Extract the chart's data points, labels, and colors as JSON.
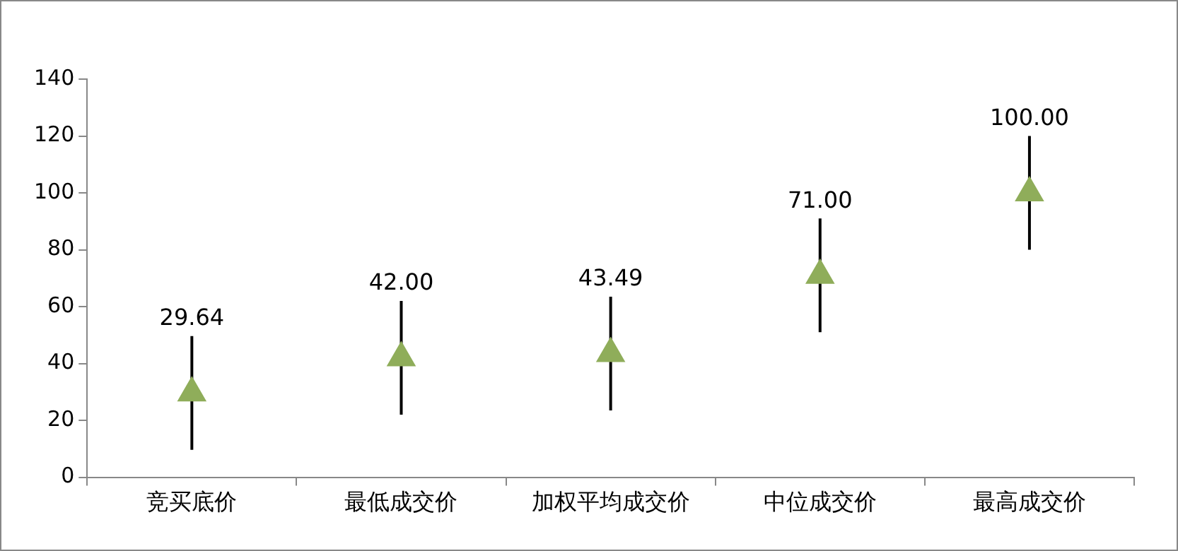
{
  "chart_data": {
    "type": "scatter",
    "categories": [
      "竞买底价",
      "最低成交价",
      "加权平均成交价",
      "中位成交价",
      "最高成交价"
    ],
    "values": [
      29.64,
      42.0,
      43.49,
      71.0,
      100.0
    ],
    "errors": [
      20,
      20,
      20,
      20,
      20
    ],
    "color": "#8fad5a",
    "marker": "triangle",
    "data_labels": true,
    "value_labels": [
      "29.64",
      "42.00",
      "43.49",
      "71.00",
      "100.00"
    ],
    "ylim": [
      0,
      140
    ],
    "yticks": [
      0,
      20,
      40,
      60,
      80,
      100,
      120,
      140
    ],
    "grid": false,
    "legend": false
  }
}
